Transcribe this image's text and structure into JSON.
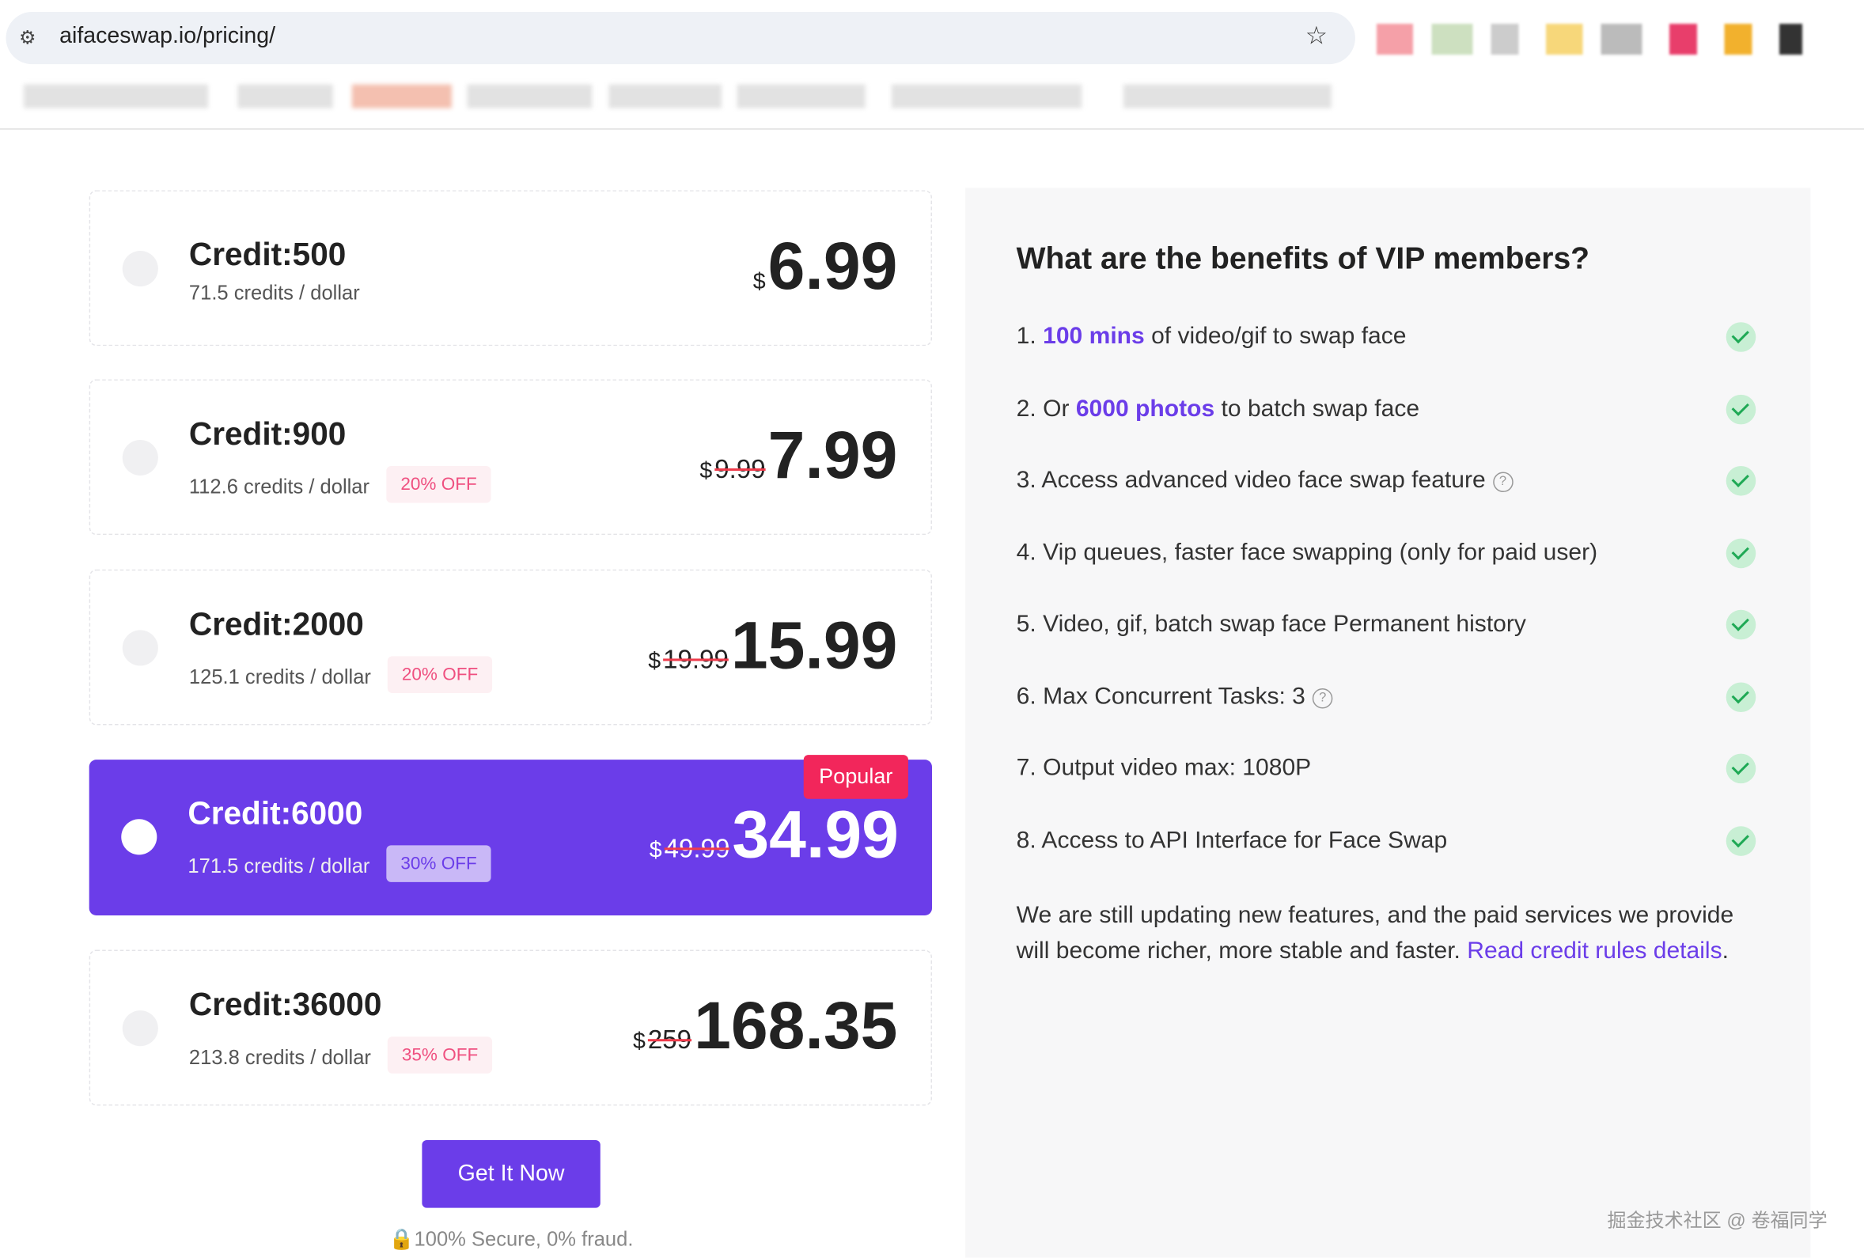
{
  "browser": {
    "url": "aifaceswap.io/pricing/"
  },
  "currency": "$",
  "plans": [
    {
      "title": "Credit:500",
      "rate": "71.5 credits / dollar",
      "price": "6.99"
    },
    {
      "title": "Credit:900",
      "rate": "112.6 credits / dollar",
      "discount": "20% OFF",
      "old_price": "9.99",
      "price": "7.99"
    },
    {
      "title": "Credit:2000",
      "rate": "125.1 credits / dollar",
      "discount": "20% OFF",
      "old_price": "19.99",
      "price": "15.99"
    },
    {
      "title": "Credit:6000",
      "rate": "171.5 credits / dollar",
      "discount": "30% OFF",
      "old_price": "49.99",
      "price": "34.99",
      "badge": "Popular",
      "selected": true
    },
    {
      "title": "Credit:36000",
      "rate": "213.8 credits / dollar",
      "discount": "35% OFF",
      "old_price": "259",
      "price": "168.35"
    }
  ],
  "button": "Get It Now",
  "secure": "🔒100% Secure, 0% fraud.",
  "benefits": {
    "title": "What are the benefits of VIP members?",
    "items": [
      {
        "prefix": "1. ",
        "highlight": "100 mins",
        "suffix": " of video/gif to swap face"
      },
      {
        "prefix": "2. Or ",
        "highlight": "6000 photos",
        "suffix": " to batch swap face"
      },
      {
        "prefix": "3. Access advanced video face swap feature",
        "help": true
      },
      {
        "prefix": "4. Vip queues, faster face swapping (only for paid user)"
      },
      {
        "prefix": "5. Video, gif, batch swap face Permanent history"
      },
      {
        "prefix": "6. Max Concurrent Tasks: 3",
        "help": true
      },
      {
        "prefix": "7. Output video max: 1080P"
      },
      {
        "prefix": "8. Access to API Interface for Face Swap"
      }
    ],
    "note": "We are still updating new features, and the paid services we provide will become richer, more stable and faster. ",
    "link": "Read credit rules details",
    "note_end": "."
  },
  "watermark": "掘金技术社区 @ 卷福同学"
}
